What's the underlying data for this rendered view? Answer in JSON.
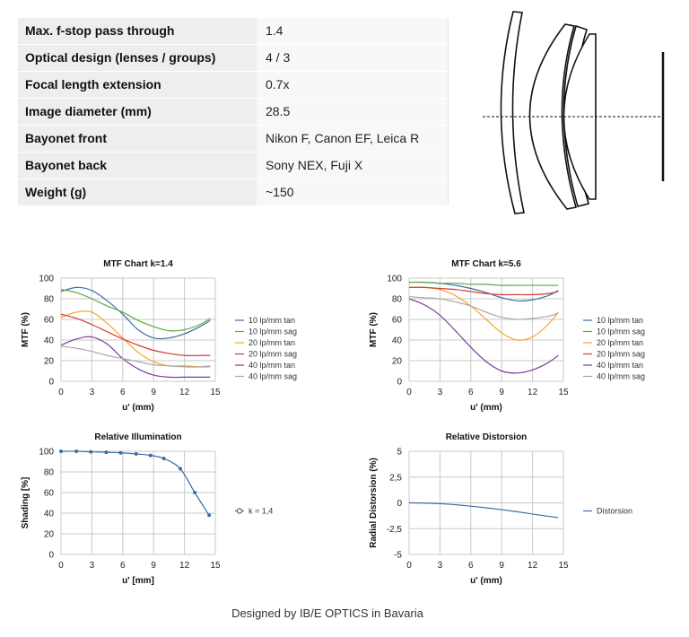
{
  "specs": [
    {
      "label": "Max. f-stop pass through",
      "value": "1.4"
    },
    {
      "label": "Optical design (lenses / groups)",
      "value": "4 / 3"
    },
    {
      "label": "Focal length extension",
      "value": "0.7x"
    },
    {
      "label": "Image diameter (mm)",
      "value": "28.5"
    },
    {
      "label": "Bayonet front",
      "value": "Nikon F, Canon EF, Leica R"
    },
    {
      "label": "Bayonet back",
      "value": "Sony NEX, Fuji X"
    },
    {
      "label": "Weight (g)",
      "value": "~150"
    }
  ],
  "footer": "Designed by IB/E OPTICS in Bavaria",
  "chart_data": [
    {
      "type": "line",
      "title": "MTF Chart k=1.4",
      "xlabel": "u' (mm)",
      "ylabel": "MTF (%)",
      "xlim": [
        0,
        15
      ],
      "ylim": [
        0,
        100
      ],
      "xticks": [
        0,
        3,
        6,
        9,
        12,
        15
      ],
      "yticks": [
        0,
        20,
        40,
        60,
        80,
        100
      ],
      "grid": true,
      "legend": "right",
      "series": [
        {
          "name": "10 lp/mm tan",
          "color": "#3a6ea5",
          "x": [
            0,
            1.5,
            3,
            4.5,
            6,
            7.5,
            9,
            10.5,
            12,
            13.5,
            14.5
          ],
          "y": [
            87,
            91,
            88,
            78,
            65,
            50,
            42,
            42,
            46,
            53,
            59
          ]
        },
        {
          "name": "10 lp/mm sag",
          "color": "#5fa84a",
          "x": [
            0,
            1.5,
            3,
            4.5,
            6,
            7.5,
            9,
            10.5,
            12,
            13.5,
            14.5
          ],
          "y": [
            89,
            86,
            80,
            73,
            67,
            59,
            53,
            49,
            50,
            55,
            61
          ]
        },
        {
          "name": "20 lp/mm tan",
          "color": "#f5a623",
          "x": [
            0,
            1.5,
            3,
            4.5,
            6,
            7.5,
            9,
            10.5,
            12,
            13.5,
            14.5
          ],
          "y": [
            62,
            67,
            67,
            56,
            42,
            28,
            19,
            15,
            15,
            14,
            14
          ]
        },
        {
          "name": "20 lp/mm sag",
          "color": "#d63a3a",
          "x": [
            0,
            1.5,
            3,
            4.5,
            6,
            7.5,
            9,
            10.5,
            12,
            13.5,
            14.5
          ],
          "y": [
            65,
            61,
            55,
            48,
            41,
            35,
            30,
            27,
            25,
            25,
            25
          ]
        },
        {
          "name": "40 lp/mm tan",
          "color": "#7a3d9a",
          "x": [
            0,
            1.5,
            3,
            4.5,
            6,
            7.5,
            9,
            10.5,
            12,
            13.5,
            14.5
          ],
          "y": [
            35,
            41,
            43,
            36,
            22,
            12,
            6,
            4,
            4,
            4,
            4
          ]
        },
        {
          "name": "40 lp/mm sag",
          "color": "#a8a8a8",
          "x": [
            0,
            1.5,
            3,
            4.5,
            6,
            7.5,
            9,
            10.5,
            12,
            13.5,
            14.5
          ],
          "y": [
            34,
            32,
            29,
            25,
            22,
            19,
            16,
            15,
            14,
            14,
            15
          ]
        }
      ]
    },
    {
      "type": "line",
      "title": "MTF Chart k=5.6",
      "xlabel": "u' (mm)",
      "ylabel": "MTF (%)",
      "xlim": [
        0,
        15
      ],
      "ylim": [
        0,
        100
      ],
      "xticks": [
        0,
        3,
        6,
        9,
        12,
        15
      ],
      "yticks": [
        0,
        20,
        40,
        60,
        80,
        100
      ],
      "grid": true,
      "legend": "right",
      "series": [
        {
          "name": "10 lp/mm tan",
          "color": "#3a6ea5",
          "x": [
            0,
            1.5,
            3,
            4.5,
            6,
            7.5,
            9,
            10.5,
            12,
            13.5,
            14.5
          ],
          "y": [
            96,
            96,
            95,
            93,
            90,
            86,
            81,
            78,
            79,
            83,
            88
          ]
        },
        {
          "name": "10 lp/mm sag",
          "color": "#5fa84a",
          "x": [
            0,
            1.5,
            3,
            4.5,
            6,
            7.5,
            9,
            10.5,
            12,
            13.5,
            14.5
          ],
          "y": [
            96,
            96,
            95,
            95,
            94,
            94,
            93,
            93,
            93,
            93,
            93
          ]
        },
        {
          "name": "20 lp/mm tan",
          "color": "#f5a623",
          "x": [
            0,
            1.5,
            3,
            4.5,
            6,
            7.5,
            9,
            10.5,
            12,
            13.5,
            14.5
          ],
          "y": [
            91,
            91,
            89,
            83,
            73,
            60,
            47,
            40,
            43,
            55,
            67
          ]
        },
        {
          "name": "20 lp/mm sag",
          "color": "#d63a3a",
          "x": [
            0,
            1.5,
            3,
            4.5,
            6,
            7.5,
            9,
            10.5,
            12,
            13.5,
            14.5
          ],
          "y": [
            91,
            91,
            90,
            89,
            87,
            85,
            84,
            84,
            84,
            85,
            87
          ]
        },
        {
          "name": "40 lp/mm tan",
          "color": "#7a3d9a",
          "x": [
            0,
            1.5,
            3,
            4.5,
            6,
            7.5,
            9,
            10.5,
            12,
            13.5,
            14.5
          ],
          "y": [
            80,
            74,
            64,
            49,
            33,
            19,
            10,
            8,
            11,
            18,
            25
          ]
        },
        {
          "name": "40 lp/mm sag",
          "color": "#a8a8a8",
          "x": [
            0,
            1.5,
            3,
            4.5,
            6,
            7.5,
            9,
            10.5,
            12,
            13.5,
            14.5
          ],
          "y": [
            82,
            81,
            80,
            77,
            73,
            67,
            62,
            60,
            61,
            63,
            66
          ]
        }
      ]
    },
    {
      "type": "line",
      "title": "Relative Illumination",
      "xlabel": "u' [mm]",
      "ylabel": "Shading [%]",
      "xlim": [
        0,
        15
      ],
      "ylim": [
        0,
        100
      ],
      "xticks": [
        0,
        3,
        6,
        9,
        12,
        15
      ],
      "yticks": [
        0,
        20,
        40,
        60,
        80,
        100
      ],
      "grid": true,
      "legend": "right",
      "markers": true,
      "series": [
        {
          "name": "k = 1,4",
          "color": "#3a6ea5",
          "x": [
            0,
            1.5,
            2.9,
            4.4,
            5.8,
            7.3,
            8.7,
            10.0,
            11.6,
            13.0,
            14.4
          ],
          "y": [
            100,
            100,
            99.5,
            99,
            98.5,
            97.5,
            96,
            93,
            83,
            60,
            38
          ]
        }
      ]
    },
    {
      "type": "line",
      "title": "Relative Distorsion",
      "xlabel": "u' (mm)",
      "ylabel": "Radial Distorsion (%)",
      "xlim": [
        0,
        15
      ],
      "ylim": [
        -5,
        5
      ],
      "xticks": [
        0,
        3,
        6,
        9,
        12,
        15
      ],
      "yticks": [
        -5,
        -2.5,
        0,
        2.5,
        5
      ],
      "yticklabels": [
        "-5",
        "-2,5",
        "0",
        "2,5",
        "5"
      ],
      "grid": true,
      "legend": "right",
      "series": [
        {
          "name": "Distorsion",
          "color": "#3a6ea5",
          "x": [
            0,
            1.5,
            3,
            4.5,
            6,
            7.5,
            9,
            10.5,
            12,
            13.5,
            14.5
          ],
          "y": [
            0,
            -0.02,
            -0.08,
            -0.18,
            -0.32,
            -0.48,
            -0.66,
            -0.86,
            -1.08,
            -1.3,
            -1.43
          ]
        }
      ]
    }
  ]
}
